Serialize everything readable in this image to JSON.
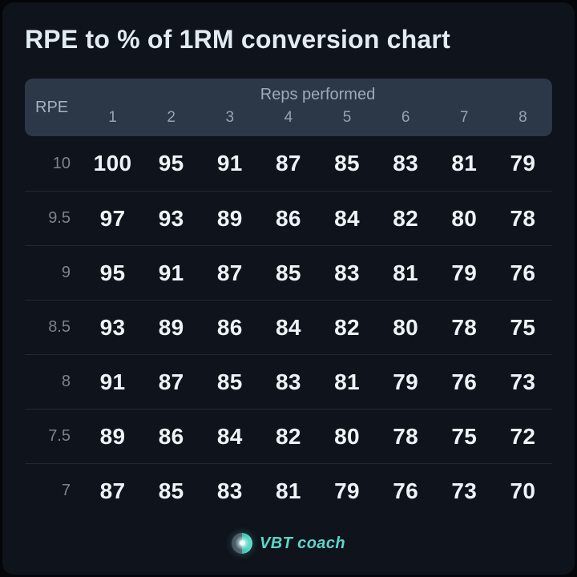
{
  "page": {
    "title": "RPE to % of 1RM conversion chart"
  },
  "footer": {
    "brand": "VBT coach",
    "logo_icon": "sphere-logo-icon"
  },
  "colors": {
    "card_background": "#0f131b",
    "header_background": "#2c3748",
    "accent_teal": "#5ed5c8",
    "data_text": "#eef3f7",
    "muted_text": "#99a3af",
    "row_divider": "#232831"
  },
  "chart_data": {
    "type": "table",
    "title": "RPE to % of 1RM conversion chart",
    "row_axis_label": "RPE",
    "column_group_label": "Reps performed",
    "columns": [
      "1",
      "2",
      "3",
      "4",
      "5",
      "6",
      "7",
      "8"
    ],
    "rows": [
      {
        "rpe": "10",
        "values": [
          100,
          95,
          91,
          87,
          85,
          83,
          81,
          79
        ]
      },
      {
        "rpe": "9.5",
        "values": [
          97,
          93,
          89,
          86,
          84,
          82,
          80,
          78
        ]
      },
      {
        "rpe": "9",
        "values": [
          95,
          91,
          87,
          85,
          83,
          81,
          79,
          76
        ]
      },
      {
        "rpe": "8.5",
        "values": [
          93,
          89,
          86,
          84,
          82,
          80,
          78,
          75
        ]
      },
      {
        "rpe": "8",
        "values": [
          91,
          87,
          85,
          83,
          81,
          79,
          76,
          73
        ]
      },
      {
        "rpe": "7.5",
        "values": [
          89,
          86,
          84,
          82,
          80,
          78,
          75,
          72
        ]
      },
      {
        "rpe": "7",
        "values": [
          87,
          85,
          83,
          81,
          79,
          76,
          73,
          70
        ]
      }
    ]
  }
}
